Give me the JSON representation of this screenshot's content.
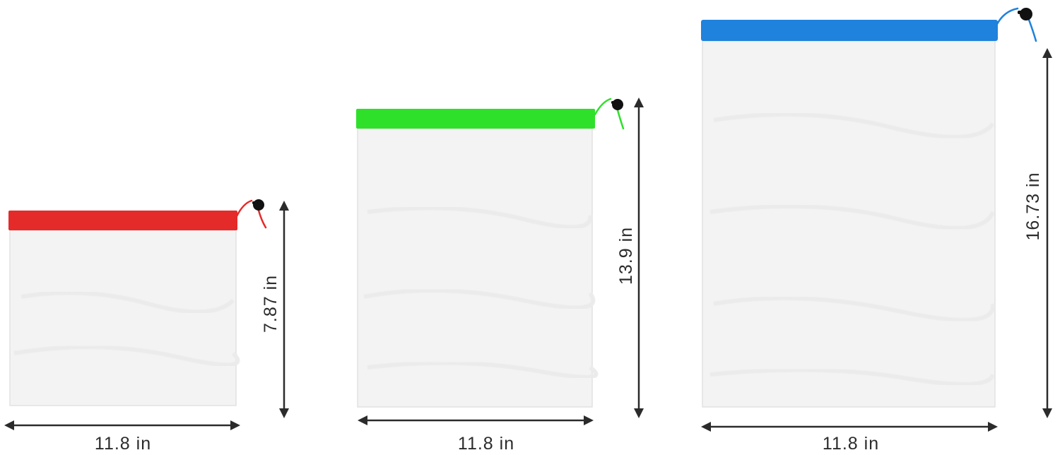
{
  "bags": [
    {
      "band_color": "#e52a2a",
      "width_label": "11.8 in",
      "height_label": "7.87 in"
    },
    {
      "band_color": "#2fe02b",
      "width_label": "11.8 in",
      "height_label": "13.9 in"
    },
    {
      "band_color": "#1f82dc",
      "width_label": "11.8 in",
      "height_label": "16.73 in"
    }
  ],
  "icons": {
    "drawstring_toggle": "cord-lock-icon"
  }
}
